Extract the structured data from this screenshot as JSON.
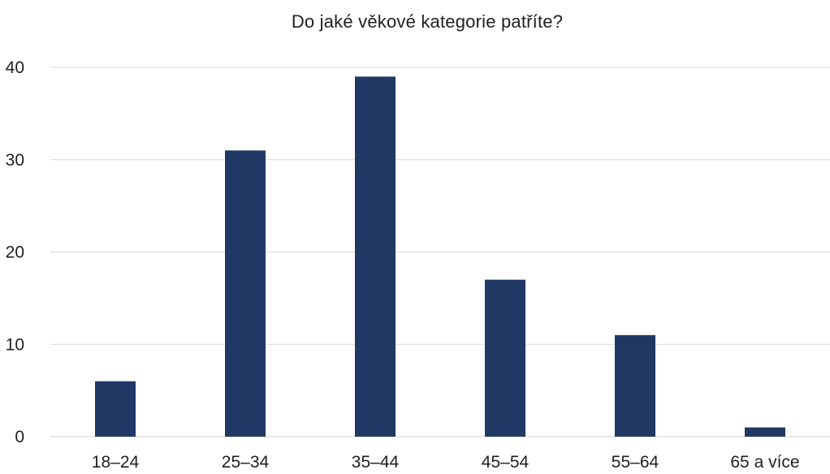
{
  "chart_data": {
    "type": "bar",
    "title": "Do jaké věkové kategorie patříte?",
    "categories": [
      "18–24",
      "25–34",
      "35–44",
      "45–54",
      "55–64",
      "65 a více"
    ],
    "values": [
      6,
      31,
      39,
      17,
      11,
      1
    ],
    "xlabel": "",
    "ylabel": "",
    "ylim": [
      0,
      40
    ],
    "yticks": [
      0,
      10,
      20,
      30,
      40
    ],
    "grid": true,
    "legend": "none",
    "bar_color": "#203864"
  }
}
